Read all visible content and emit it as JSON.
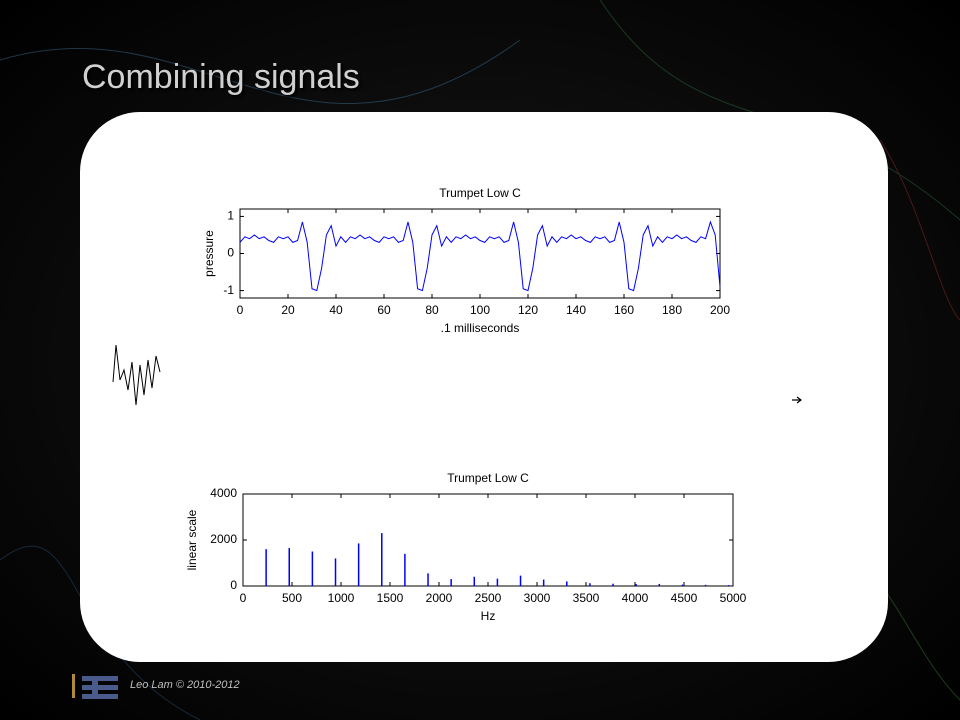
{
  "slide_title": "Combining signals",
  "footer": "Leo Lam © 2010-2012",
  "chart_data": [
    {
      "type": "line",
      "title": "Trumpet Low C",
      "xlabel": ".1 milliseconds",
      "ylabel": "pressure",
      "x": [
        0,
        2,
        4,
        6,
        8,
        10,
        12,
        14,
        16,
        18,
        20,
        22,
        24,
        26,
        28,
        30,
        32,
        34,
        36,
        38,
        40,
        42,
        44,
        46,
        48,
        50,
        52,
        54,
        56,
        58,
        60,
        62,
        64,
        66,
        68,
        70,
        72,
        74,
        76,
        78,
        80,
        82,
        84,
        86,
        88,
        90,
        92,
        94,
        96,
        98,
        100,
        102,
        104,
        106,
        108,
        110,
        112,
        114,
        116,
        118,
        120,
        122,
        124,
        126,
        128,
        130,
        132,
        134,
        136,
        138,
        140,
        142,
        144,
        146,
        148,
        150,
        152,
        154,
        156,
        158,
        160,
        162,
        164,
        166,
        168,
        170,
        172,
        174,
        176,
        178,
        180,
        182,
        184,
        186,
        188,
        190,
        192,
        194,
        196,
        198,
        200
      ],
      "values": [
        0.3,
        0.45,
        0.4,
        0.5,
        0.4,
        0.45,
        0.35,
        0.3,
        0.45,
        0.4,
        0.45,
        0.3,
        0.35,
        0.85,
        0.3,
        -0.95,
        -1.0,
        -0.4,
        0.5,
        0.75,
        0.2,
        0.45,
        0.3,
        0.45,
        0.4,
        0.5,
        0.4,
        0.45,
        0.35,
        0.3,
        0.45,
        0.4,
        0.45,
        0.3,
        0.35,
        0.85,
        0.3,
        -0.95,
        -1.0,
        -0.4,
        0.5,
        0.75,
        0.2,
        0.45,
        0.3,
        0.45,
        0.4,
        0.5,
        0.4,
        0.45,
        0.35,
        0.3,
        0.45,
        0.4,
        0.45,
        0.3,
        0.35,
        0.85,
        0.3,
        -0.95,
        -1.0,
        -0.4,
        0.5,
        0.75,
        0.2,
        0.45,
        0.3,
        0.45,
        0.4,
        0.5,
        0.4,
        0.45,
        0.35,
        0.3,
        0.45,
        0.4,
        0.45,
        0.3,
        0.35,
        0.85,
        0.3,
        -0.95,
        -1.0,
        -0.4,
        0.5,
        0.75,
        0.2,
        0.45,
        0.3,
        0.45,
        0.4,
        0.5,
        0.4,
        0.45,
        0.35,
        0.3,
        0.45,
        0.4,
        0.85,
        0.5,
        -0.9
      ],
      "color": "#0000ff",
      "xlim": [
        0,
        200
      ],
      "xticks": [
        0,
        20,
        40,
        60,
        80,
        100,
        120,
        140,
        160,
        180,
        200
      ],
      "ylim": [
        -1.2,
        1.2
      ],
      "yticks": [
        -1,
        0,
        1
      ]
    },
    {
      "type": "stem",
      "title": "Trumpet Low C",
      "xlabel": "Hz",
      "ylabel": "linear scale",
      "x": [
        236,
        472,
        708,
        944,
        1180,
        1416,
        1652,
        1888,
        2124,
        2360,
        2596,
        2832,
        3068,
        3304,
        3540,
        3776,
        4012,
        4248,
        4484,
        4720,
        4956
      ],
      "values": [
        1600,
        1650,
        1500,
        1200,
        1850,
        2300,
        1400,
        550,
        300,
        400,
        320,
        450,
        280,
        200,
        120,
        100,
        80,
        90,
        60,
        50,
        40
      ],
      "color": "#0000ff",
      "xlim": [
        0,
        5000
      ],
      "xticks": [
        0,
        500,
        1000,
        1500,
        2000,
        2500,
        3000,
        3500,
        4000,
        4500,
        5000
      ],
      "ylim": [
        0,
        4000
      ],
      "yticks": [
        0,
        2000,
        4000
      ]
    }
  ]
}
